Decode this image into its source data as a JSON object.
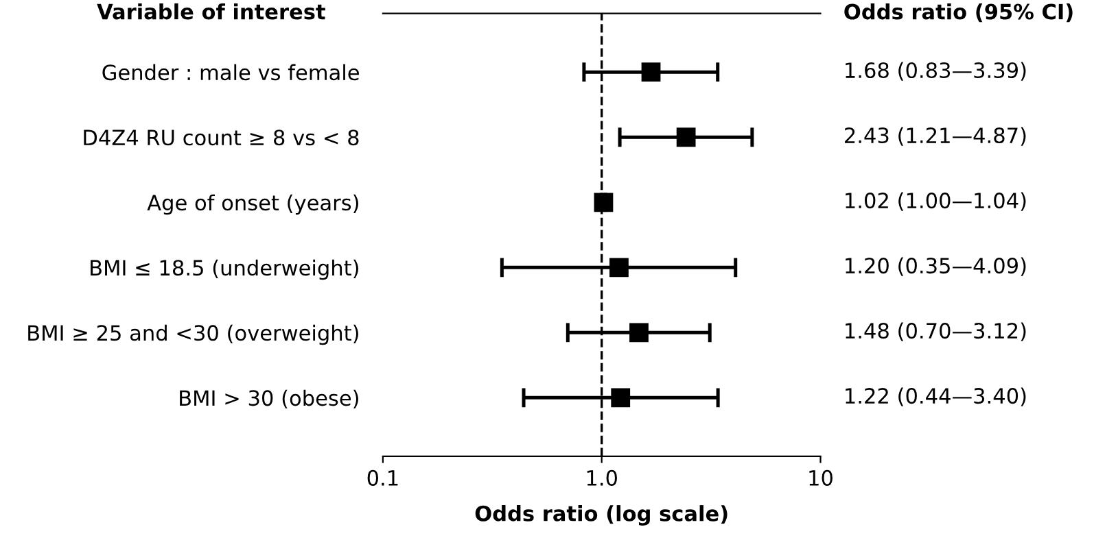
{
  "chart_data": {
    "type": "scatter",
    "orientation": "horizontal",
    "categories": [
      "Gender : male vs female",
      "D4Z4 RU count ≥ 8 vs < 8",
      "Age of onset (years)",
      "BMI ≤ 18.5 (underweight)",
      "BMI ≥ 25 and <30 (overweight)",
      "BMI > 30 (obese)"
    ],
    "series": [
      {
        "color": "#000000",
        "values": [
          1.68,
          2.43,
          1.02,
          1.2,
          1.48,
          1.22
        ],
        "errors": [
          [
            0.83,
            3.39
          ],
          [
            1.21,
            4.87
          ],
          [
            1.0,
            1.04
          ],
          [
            0.35,
            4.09
          ],
          [
            0.7,
            3.12
          ],
          [
            0.44,
            3.4
          ]
        ],
        "value_labels": [
          "1.68 (0.83—3.39)",
          "2.43 (1.21—4.87)",
          "1.02 (1.00—1.04)",
          "1.20 (0.35—4.09)",
          "1.48 (0.70—3.12)",
          "1.22 (0.44—3.40)"
        ]
      }
    ],
    "marker": "square",
    "log": "x",
    "xlim": [
      0.1,
      10
    ],
    "xticks": [
      0.1,
      {
        "value": 1,
        "label": "1.0"
      },
      10
    ],
    "xlabel": "Odds ratio (log scale)",
    "ref_lines": [
      {
        "axis": "x",
        "value": 1,
        "color": "#000000",
        "line_style": "dashed"
      }
    ],
    "annotations": [
      "Variable of interest",
      "Odds ratio (95% CI)"
    ],
    "grid": false,
    "legend": false
  }
}
